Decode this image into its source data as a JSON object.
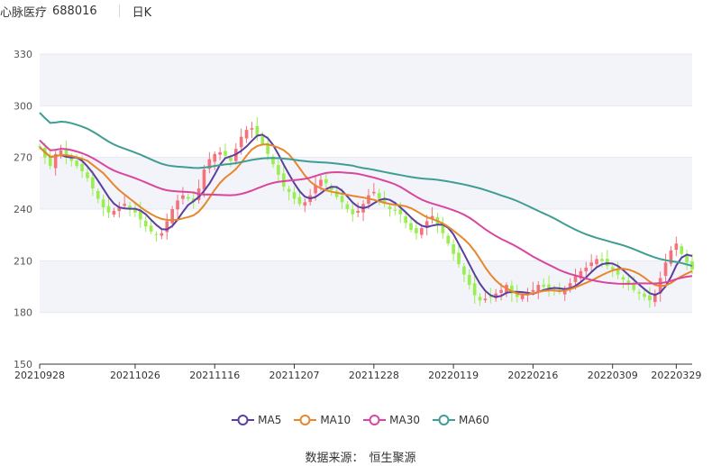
{
  "header": {
    "stock_name": "心脉医疗",
    "stock_code": "688016",
    "period": "日K"
  },
  "source": {
    "label": "数据来源：",
    "value": "恒生聚源"
  },
  "chart_data": {
    "type": "candlestick",
    "x_tick_labels": [
      "20210928",
      "20211026",
      "20211116",
      "20211207",
      "20211228",
      "20220119",
      "20220216",
      "20220309",
      "20220329"
    ],
    "x_tick_index": [
      0,
      18,
      33,
      48,
      63,
      78,
      93,
      108,
      120
    ],
    "ylim": [
      150,
      330
    ],
    "y_ticks": [
      150,
      180,
      210,
      240,
      270,
      300,
      330
    ],
    "colors": {
      "up": "#f4727c",
      "down": "#99ef4f"
    },
    "closes": [
      276,
      270,
      265,
      272,
      274,
      271,
      268,
      265,
      262,
      258,
      252,
      246,
      241,
      238,
      239,
      241,
      243,
      240,
      238,
      234,
      230,
      227,
      225,
      226,
      233,
      240,
      245,
      248,
      246,
      244,
      252,
      263,
      269,
      272,
      273,
      271,
      268,
      275,
      282,
      286,
      287,
      283,
      278,
      272,
      266,
      260,
      253,
      250,
      246,
      243,
      244,
      248,
      254,
      257,
      255,
      251,
      247,
      244,
      240,
      237,
      239,
      243,
      248,
      250,
      246,
      243,
      240,
      239,
      237,
      232,
      228,
      226,
      229,
      233,
      236,
      231,
      226,
      220,
      214,
      208,
      202,
      196,
      190,
      187,
      188,
      189,
      191,
      193,
      196,
      191,
      189,
      190,
      191,
      193,
      196,
      195,
      194,
      193,
      192,
      194,
      197,
      201,
      204,
      206,
      209,
      211,
      210,
      207,
      205,
      202,
      199,
      196,
      193,
      191,
      189,
      187,
      191,
      200,
      209,
      216,
      220,
      214,
      209,
      205
    ],
    "ma_periods": [
      5,
      10,
      30,
      60
    ],
    "series": [
      {
        "name": "MA5",
        "color": "#5b3fa0"
      },
      {
        "name": "MA10",
        "color": "#e8862e"
      },
      {
        "name": "MA30",
        "color": "#d9469e"
      },
      {
        "name": "MA60",
        "color": "#3f9d94"
      }
    ]
  }
}
